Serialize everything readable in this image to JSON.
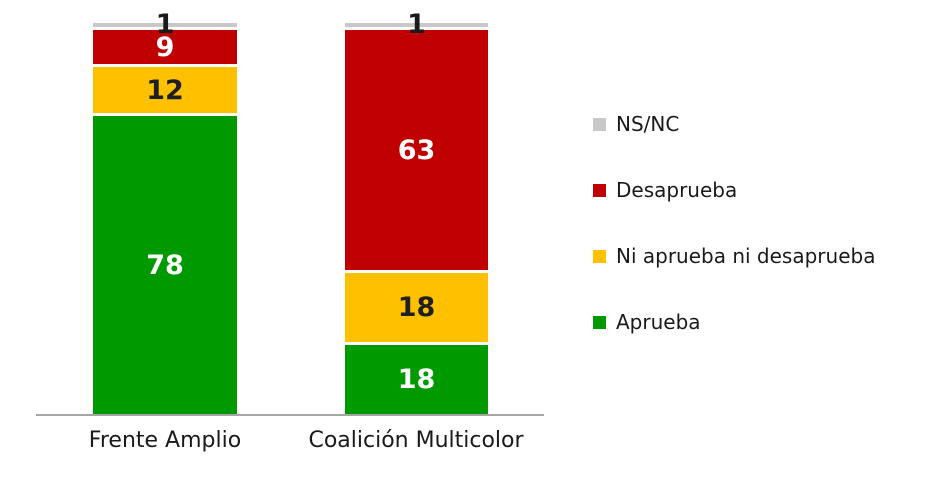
{
  "chart_data": {
    "type": "bar",
    "stacked": true,
    "title": "",
    "xlabel": "",
    "ylabel": "",
    "ylim": [
      0,
      100
    ],
    "grid": false,
    "legend_position": "right",
    "categories": [
      "Frente Amplio",
      "Coalición Multicolor"
    ],
    "series": [
      {
        "name": "Aprueba",
        "color": "#009a00",
        "label_color": "#ffffff",
        "values": [
          78,
          18
        ]
      },
      {
        "name": "Ni aprueba ni desaprueba",
        "color": "#ffc000",
        "label_color": "#1f1f1f",
        "values": [
          12,
          18
        ]
      },
      {
        "name": "Desaprueba",
        "color": "#c00000",
        "label_color": "#ffffff",
        "values": [
          9,
          63
        ]
      },
      {
        "name": "NS/NC",
        "color": "#c8c8c8",
        "label_color": "#1a1a1a",
        "values": [
          1,
          1
        ]
      }
    ],
    "legend": [
      "NS/NC",
      "Desaprueba",
      "Ni aprueba ni desaprueba",
      "Aprueba"
    ]
  },
  "colors": {
    "axis_line": "#a6a6a6",
    "category_text": "#1a1a1a",
    "legend_text": "#1a1a1a",
    "background": "#ffffff"
  }
}
